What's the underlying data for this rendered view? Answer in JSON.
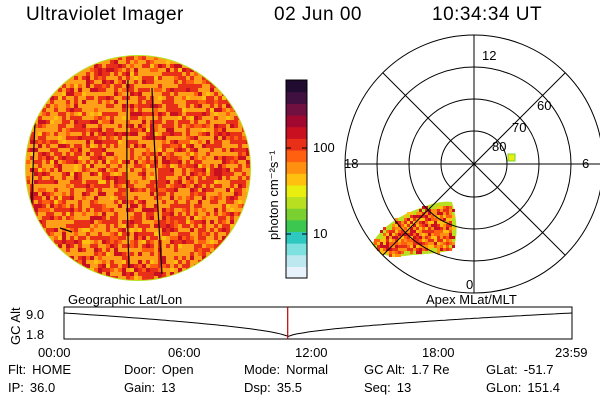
{
  "header": {
    "title": "Ultraviolet Imager",
    "date": "02 Jun 00",
    "time": "10:34:34 UT"
  },
  "colorbar": {
    "unit_label": "photon cm⁻²s⁻¹",
    "ticks": [
      {
        "value": 100,
        "label": "100"
      },
      {
        "value": 10,
        "label": "10"
      }
    ],
    "colors": [
      "#e8f2fa",
      "#bde8f0",
      "#7fe0e0",
      "#2fc8c0",
      "#3cc850",
      "#7ad030",
      "#b8e020",
      "#e8ee10",
      "#ffc010",
      "#ff9010",
      "#ff6010",
      "#e83018",
      "#c81020",
      "#a00830",
      "#701040",
      "#401040",
      "#200c30"
    ]
  },
  "polar": {
    "mlt_labels": [
      "12",
      "18",
      "6",
      "0"
    ],
    "lat_labels": [
      "60",
      "70",
      "80"
    ],
    "caption": "Apex MLat/MLT"
  },
  "globe": {
    "caption": "Geographic Lat/Lon"
  },
  "altitude_plot": {
    "axis_label": "GC Alt",
    "y_ticks": [
      "9.0",
      "1.8"
    ],
    "x_ticks": [
      "00:00",
      "06:00",
      "12:00",
      "18:00",
      "23:59"
    ],
    "marker_time": "10:34",
    "line_color": "#000000",
    "marker_color": "#c00000"
  },
  "footer": {
    "row1": [
      {
        "label": "Flt:",
        "value": "HOME"
      },
      {
        "label": "Door:",
        "value": "Open"
      },
      {
        "label": "Mode:",
        "value": "Normal"
      },
      {
        "label": "GC Alt:",
        "value": "1.7 Re"
      },
      {
        "label": "GLat:",
        "value": "-51.7"
      }
    ],
    "row2": [
      {
        "label": "IP:",
        "value": "36.0"
      },
      {
        "label": "Gain:",
        "value": "13"
      },
      {
        "label": "Dsp:",
        "value": "35.5"
      },
      {
        "label": "Seq:",
        "value": "13"
      },
      {
        "label": "GLon:",
        "value": "151.4"
      }
    ]
  }
}
